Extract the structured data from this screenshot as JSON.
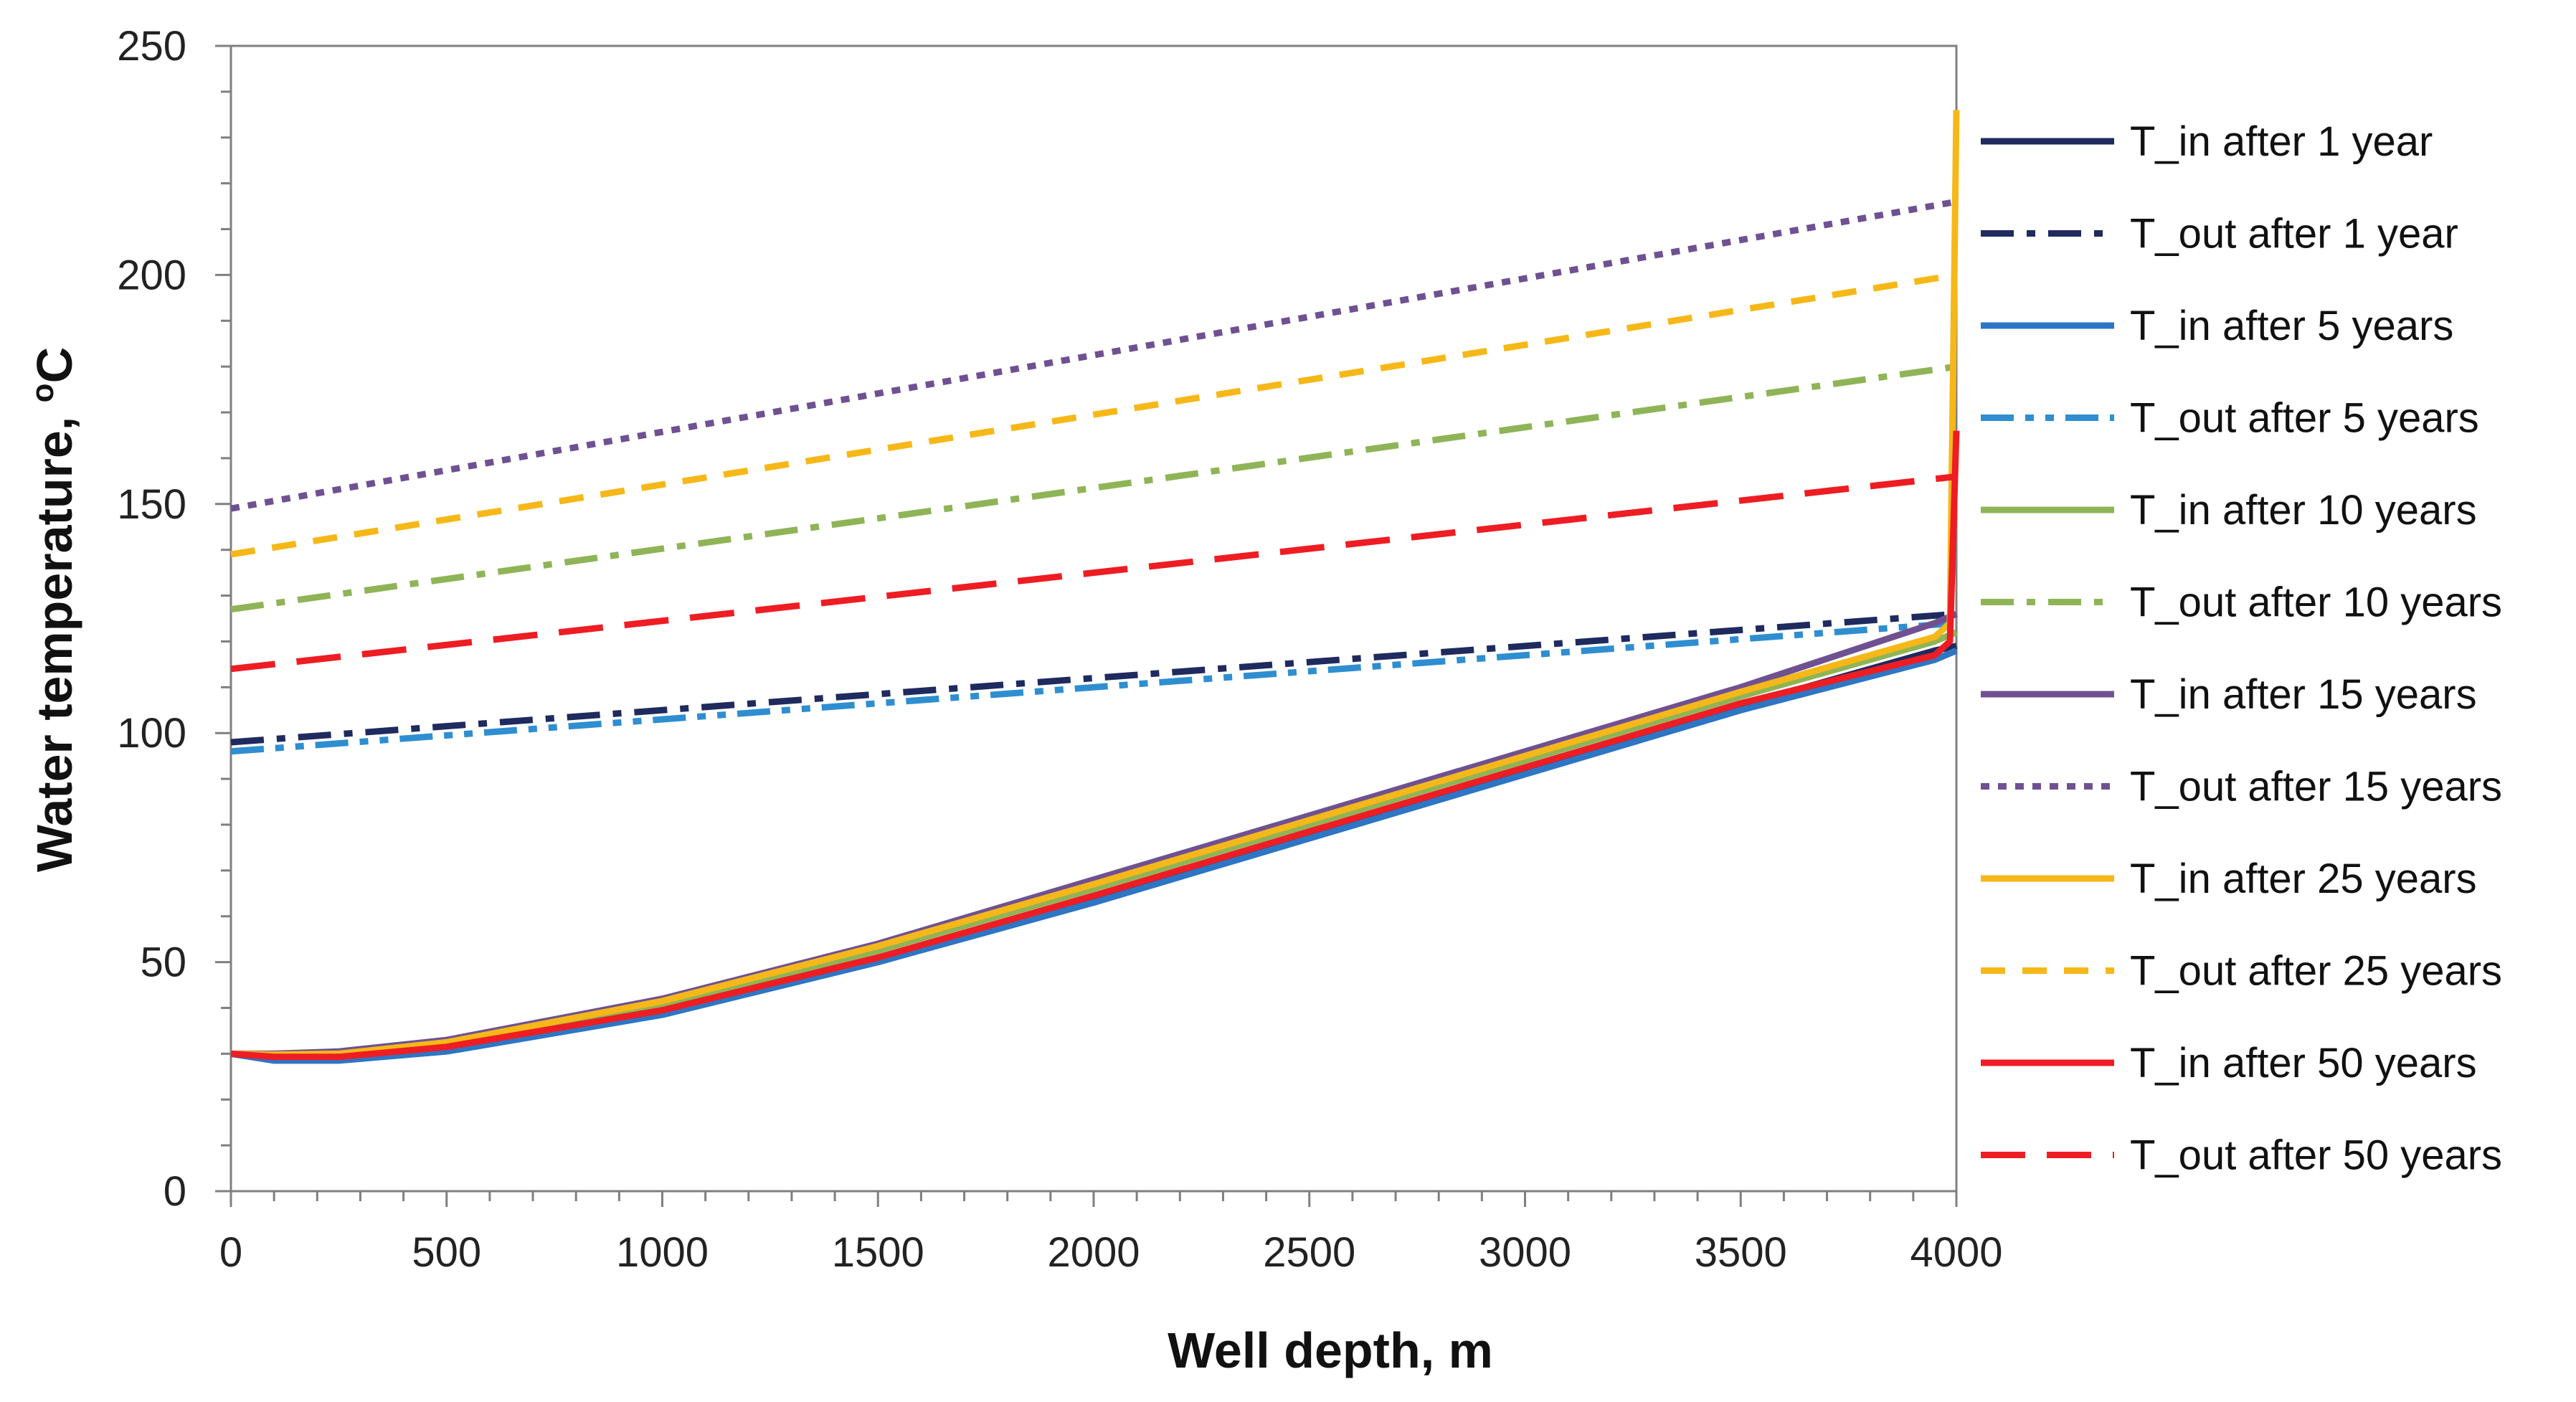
{
  "chart_data": {
    "type": "line",
    "title": "",
    "xlabel": "Well depth, m",
    "ylabel_main": "Water temperature, ",
    "ylabel_sup": "o",
    "ylabel_unit": "C",
    "xlim": [
      0,
      4000
    ],
    "ylim": [
      0,
      250
    ],
    "xticks": [
      "0",
      "500",
      "1000",
      "1500",
      "2000",
      "2500",
      "3000",
      "3500",
      "4000"
    ],
    "yticks": [
      "0",
      "50",
      "100",
      "150",
      "200",
      "250"
    ],
    "grid": false,
    "legend_position": "right",
    "series": [
      {
        "name": "T_in after 1 year",
        "color": "#1f2a5e",
        "dash": "solid",
        "x": [
          0,
          100,
          250,
          500,
          1000,
          1500,
          2000,
          2500,
          3000,
          3500,
          3950,
          4000
        ],
        "y": [
          30,
          29,
          29,
          31,
          39,
          51,
          64,
          78,
          92,
          106,
          118,
          119
        ]
      },
      {
        "name": "T_out after 1 year",
        "color": "#1f2a5e",
        "dash": "dashdot",
        "x": [
          0,
          4000
        ],
        "y": [
          98,
          126
        ]
      },
      {
        "name": "T_in after 5 years",
        "color": "#2e75c4",
        "dash": "solid",
        "x": [
          0,
          100,
          250,
          500,
          1000,
          1500,
          2000,
          2500,
          3000,
          3500,
          3950,
          4000
        ],
        "y": [
          30,
          28.5,
          28.5,
          30.5,
          38.5,
          50,
          63,
          77,
          91,
          105,
          116,
          118
        ]
      },
      {
        "name": "T_out after 5 years",
        "color": "#2e8ed0",
        "dash": "dashdotdot",
        "x": [
          0,
          4000
        ],
        "y": [
          96,
          124
        ]
      },
      {
        "name": "T_in after 10 years",
        "color": "#8fb457",
        "dash": "solid",
        "x": [
          0,
          100,
          250,
          500,
          1000,
          1500,
          2000,
          2500,
          3000,
          3500,
          3950,
          4000
        ],
        "y": [
          30,
          29.5,
          29.5,
          32,
          40.5,
          52.5,
          66,
          80,
          94,
          108,
          120,
          122
        ]
      },
      {
        "name": "T_out after 10 years",
        "color": "#8fb457",
        "dash": "dashdot",
        "x": [
          0,
          4000
        ],
        "y": [
          127,
          180
        ]
      },
      {
        "name": "T_in after 15 years",
        "color": "#6f5192",
        "dash": "solid",
        "x": [
          0,
          100,
          250,
          500,
          1000,
          1500,
          2000,
          2500,
          3000,
          3500,
          3950,
          4000
        ],
        "y": [
          30,
          30,
          30.5,
          33,
          42,
          54,
          68,
          82,
          96,
          110,
          124,
          126
        ]
      },
      {
        "name": "T_out after 15 years",
        "color": "#6f5192",
        "dash": "dotted",
        "x": [
          0,
          4000
        ],
        "y": [
          149,
          216
        ]
      },
      {
        "name": "T_in after 25 years",
        "color": "#f6b818",
        "dash": "solid",
        "x": [
          0,
          100,
          250,
          500,
          1000,
          1500,
          2000,
          2500,
          3000,
          3500,
          3950,
          3985,
          4000
        ],
        "y": [
          30,
          29.8,
          30,
          32.5,
          41.5,
          53.5,
          67,
          81,
          95,
          109,
          121,
          124,
          236
        ]
      },
      {
        "name": "T_out after 25 years",
        "color": "#f6b818",
        "dash": "dashed",
        "x": [
          0,
          4000
        ],
        "y": [
          139,
          200
        ]
      },
      {
        "name": "T_in after 50 years",
        "color": "#ee1d23",
        "dash": "solid",
        "x": [
          0,
          100,
          250,
          500,
          1000,
          1500,
          2000,
          2500,
          3000,
          3500,
          3950,
          3985,
          4000
        ],
        "y": [
          30,
          29.3,
          29.3,
          31.5,
          39.5,
          51,
          64.5,
          78.5,
          92.5,
          106.5,
          117,
          120,
          166
        ]
      },
      {
        "name": "T_out after 50 years",
        "color": "#ee1d23",
        "dash": "longdash",
        "x": [
          0,
          4000
        ],
        "y": [
          114,
          156
        ]
      }
    ]
  }
}
